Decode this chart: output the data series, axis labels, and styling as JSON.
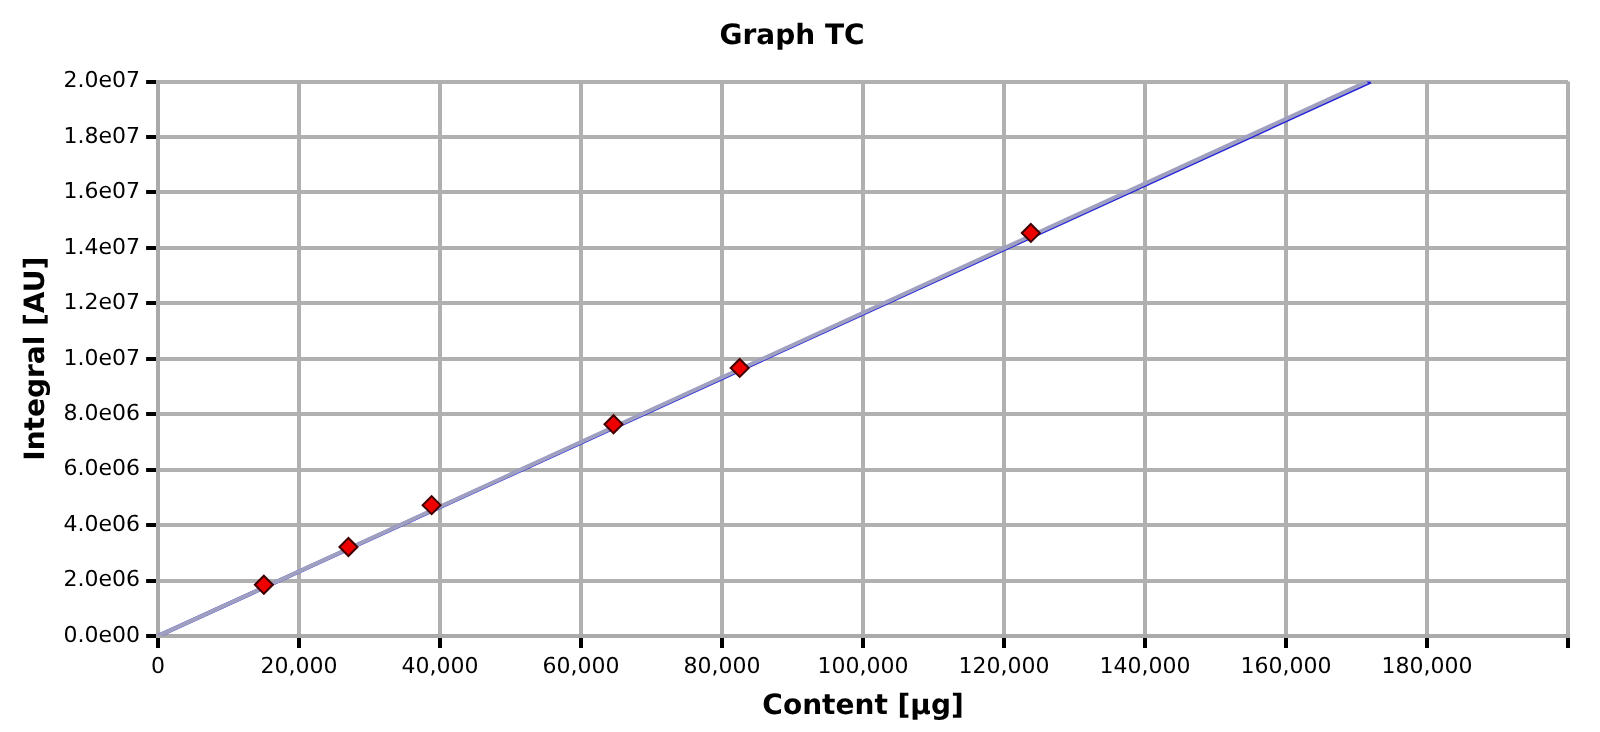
{
  "chart_data": {
    "type": "scatter",
    "title": "Graph TC",
    "xlabel": "Content [µg]",
    "ylabel": "Integral [AU]",
    "xlim": [
      0,
      200000
    ],
    "xticks": [
      {
        "value": 0,
        "label": "0"
      },
      {
        "value": 20000,
        "label": "20,000"
      },
      {
        "value": 40000,
        "label": "40,000"
      },
      {
        "value": 60000,
        "label": "60,000"
      },
      {
        "value": 80000,
        "label": "80,000"
      },
      {
        "value": 100000,
        "label": "100,000"
      },
      {
        "value": 120000,
        "label": "120,000"
      },
      {
        "value": 140000,
        "label": "140,000"
      },
      {
        "value": 160000,
        "label": "160,000"
      },
      {
        "value": 180000,
        "label": "180,000"
      },
      {
        "value": 200000,
        "label": null
      }
    ],
    "ylim": [
      0,
      20000000
    ],
    "yticks": [
      {
        "value": 0,
        "label": "0.0e00"
      },
      {
        "value": 2000000,
        "label": "2.0e06"
      },
      {
        "value": 4000000,
        "label": "4.0e06"
      },
      {
        "value": 6000000,
        "label": "6.0e06"
      },
      {
        "value": 8000000,
        "label": "8.0e06"
      },
      {
        "value": 10000000,
        "label": "1.0e07"
      },
      {
        "value": 12000000,
        "label": "1.2e07"
      },
      {
        "value": 14000000,
        "label": "1.4e07"
      },
      {
        "value": 16000000,
        "label": "1.6e07"
      },
      {
        "value": 18000000,
        "label": "1.8e07"
      },
      {
        "value": 20000000,
        "label": "2.0e07"
      }
    ],
    "grid": true,
    "legend": false,
    "series": [
      {
        "color": "#ee0000",
        "marker": "diamond",
        "x": [
          15000,
          27000,
          38800,
          64600,
          82500,
          123800
        ],
        "values": [
          1850000,
          3210000,
          4720000,
          7640000,
          9670000,
          14540000
        ]
      },
      {
        "type": "line",
        "color": "#9f9fc0",
        "marker": "none",
        "x": [
          0,
          171500
        ],
        "values": [
          0,
          20000000
        ]
      },
      {
        "type": "line",
        "color": "#2222dd",
        "marker": "none",
        "x": [
          0,
          172000
        ],
        "values": [
          0,
          20000000
        ]
      }
    ]
  }
}
